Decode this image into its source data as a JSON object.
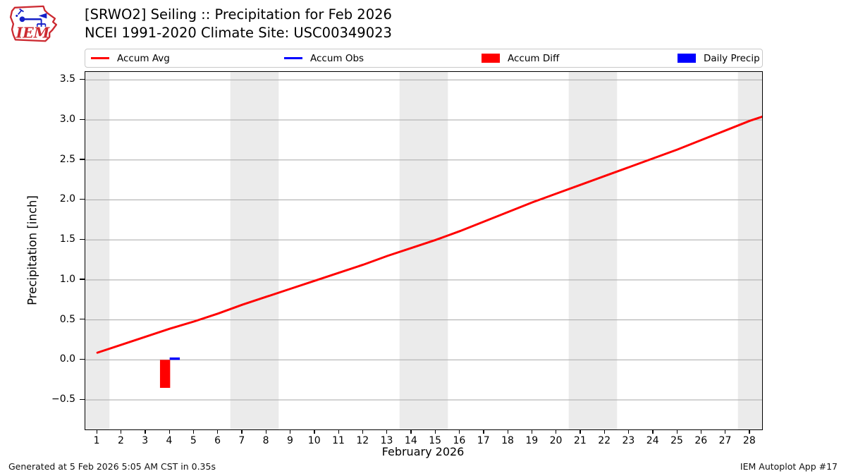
{
  "header": {
    "title_line1": "[SRWO2] Seiling :: Precipitation for Feb 2026",
    "title_line2": "NCEI 1991-2020 Climate Site: USC00349023",
    "logo_text": "IEM"
  },
  "legend": {
    "items": [
      {
        "label": "Accum Avg",
        "swatch": "line",
        "color": "#ff0000"
      },
      {
        "label": "Accum Obs",
        "swatch": "line",
        "color": "#0000ff"
      },
      {
        "label": "Accum Diff",
        "swatch": "box",
        "color": "#ff0000"
      },
      {
        "label": "Daily Precip",
        "swatch": "box",
        "color": "#0000ff"
      }
    ]
  },
  "footer": {
    "left": "Generated at 5 Feb 2026 5:05 AM CST in 0.35s",
    "right": "IEM Autoplot App #17"
  },
  "colors": {
    "accum_avg": "#ff0000",
    "accum_obs": "#0000ff",
    "accum_diff": "#ff0000",
    "daily_precip": "#0000ff",
    "gridline": "#b0b0b0",
    "weekend_band": "#ebebeb",
    "axis_border": "#000000"
  },
  "chart_data": {
    "type": "line",
    "title": "[SRWO2] Seiling :: Precipitation for Feb 2026 — NCEI 1991-2020 Climate Site: USC00349023",
    "xlabel": "February 2026",
    "ylabel": "Precipitation [inch]",
    "xlim": [
      0.5,
      28.5
    ],
    "ylim": [
      -0.87,
      3.6
    ],
    "x_ticks": [
      1,
      2,
      3,
      4,
      5,
      6,
      7,
      8,
      9,
      10,
      11,
      12,
      13,
      14,
      15,
      16,
      17,
      18,
      19,
      20,
      21,
      22,
      23,
      24,
      25,
      26,
      27,
      28
    ],
    "y_ticks": [
      -0.5,
      0.0,
      0.5,
      1.0,
      1.5,
      2.0,
      2.5,
      3.0,
      3.5
    ],
    "grid": true,
    "legend_position": "top",
    "weekend_bands": [
      [
        0.5,
        1.5
      ],
      [
        6.5,
        8.5
      ],
      [
        13.5,
        15.5
      ],
      [
        20.5,
        22.5
      ],
      [
        27.5,
        28.5
      ]
    ],
    "series": [
      {
        "name": "Accum Avg",
        "type": "line",
        "color": "#ff0000",
        "x": [
          1,
          2,
          3,
          4,
          5,
          6,
          7,
          8,
          9,
          10,
          11,
          12,
          13,
          14,
          15,
          16,
          17,
          18,
          19,
          20,
          21,
          22,
          23,
          24,
          25,
          26,
          27,
          28,
          28.5
        ],
        "y": [
          0.09,
          0.19,
          0.29,
          0.39,
          0.48,
          0.58,
          0.69,
          0.79,
          0.89,
          0.99,
          1.09,
          1.19,
          1.3,
          1.4,
          1.5,
          1.61,
          1.73,
          1.85,
          1.97,
          2.08,
          2.19,
          2.3,
          2.41,
          2.52,
          2.63,
          2.75,
          2.87,
          2.99,
          3.04
        ]
      },
      {
        "name": "Accum Diff",
        "type": "bar",
        "color": "#ff0000",
        "bar_width": 0.42,
        "x": [
          3.8
        ],
        "y": [
          -0.35
        ]
      },
      {
        "name": "Daily Precip",
        "type": "bar",
        "color": "#0000ff",
        "bar_width": 0.42,
        "x": [
          4.2
        ],
        "y": [
          0.03
        ]
      }
    ]
  }
}
